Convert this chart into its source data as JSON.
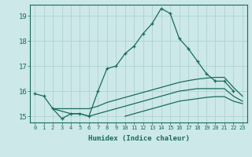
{
  "xlabel": "Humidex (Indice chaleur)",
  "bg_color": "#cce8e8",
  "line_color": "#1a6b5a",
  "grid_color": "#aacfcf",
  "xlim": [
    -0.5,
    23.5
  ],
  "ylim": [
    14.75,
    19.45
  ],
  "yticks": [
    15,
    16,
    17,
    18,
    19
  ],
  "xticks": [
    0,
    1,
    2,
    3,
    4,
    5,
    6,
    7,
    8,
    9,
    10,
    11,
    12,
    13,
    14,
    15,
    16,
    17,
    18,
    19,
    20,
    21,
    22,
    23
  ],
  "series": [
    {
      "x": [
        0,
        1,
        2,
        3,
        4,
        5,
        6,
        7,
        8,
        9,
        10,
        11,
        12,
        13,
        14,
        15,
        16,
        17,
        18,
        19,
        20,
        21,
        22
      ],
      "y": [
        15.9,
        15.8,
        15.3,
        14.9,
        15.1,
        15.1,
        15.0,
        16.0,
        16.9,
        17.0,
        17.5,
        17.8,
        18.3,
        18.7,
        19.3,
        19.1,
        18.1,
        17.7,
        17.2,
        16.7,
        16.4,
        16.4,
        16.0
      ],
      "marker": true
    },
    {
      "x": [
        2,
        3,
        4,
        5,
        6,
        7,
        8,
        9,
        10,
        11,
        12,
        13,
        14,
        15,
        16,
        17,
        18,
        19,
        20,
        21,
        22,
        23
      ],
      "y": [
        15.3,
        15.3,
        15.3,
        15.3,
        15.3,
        15.4,
        15.55,
        15.65,
        15.75,
        15.85,
        15.95,
        16.05,
        16.15,
        16.25,
        16.35,
        16.42,
        16.48,
        16.52,
        16.55,
        16.55,
        16.15,
        15.8
      ],
      "marker": false
    },
    {
      "x": [
        2,
        3,
        4,
        5,
        6,
        7,
        8,
        9,
        10,
        11,
        12,
        13,
        14,
        15,
        16,
        17,
        18,
        19,
        20,
        21,
        22,
        23
      ],
      "y": [
        15.3,
        15.2,
        15.1,
        15.1,
        15.0,
        15.1,
        15.2,
        15.3,
        15.4,
        15.5,
        15.6,
        15.7,
        15.8,
        15.9,
        16.0,
        16.05,
        16.1,
        16.1,
        16.1,
        16.1,
        15.8,
        15.6
      ],
      "marker": false
    },
    {
      "x": [
        10,
        11,
        12,
        13,
        14,
        15,
        16,
        17,
        18,
        19,
        20,
        21,
        22,
        23
      ],
      "y": [
        15.0,
        15.1,
        15.2,
        15.3,
        15.4,
        15.5,
        15.6,
        15.65,
        15.7,
        15.75,
        15.78,
        15.78,
        15.6,
        15.5
      ],
      "marker": false
    }
  ]
}
